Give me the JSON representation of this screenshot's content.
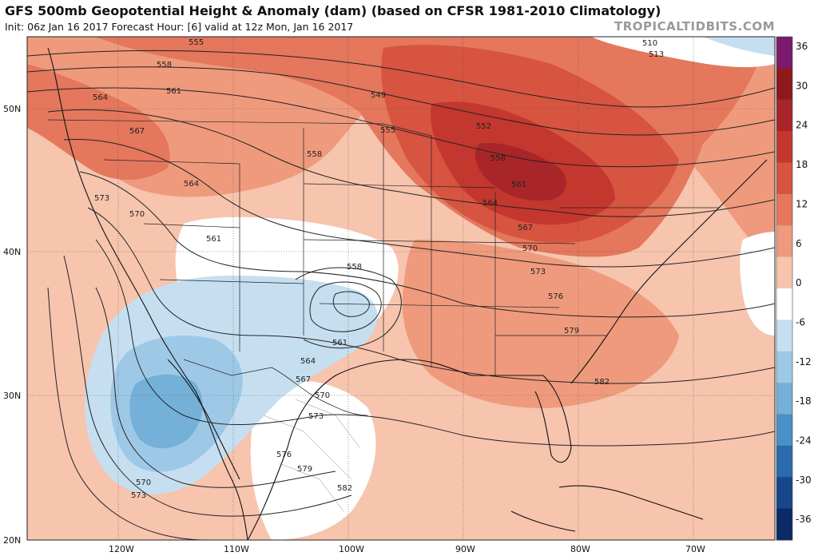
{
  "header": {
    "title": "GFS 500mb Geopotential Height & Anomaly (dam) (based on CFSR 1981-2010 Climatology)",
    "subtitle": "Init: 06z Jan 16 2017   Forecast Hour: [6]   valid at 12z Mon, Jan 16 2017",
    "brand": "TROPICALTIDBITS.COM"
  },
  "axes": {
    "lon_labels": [
      "120W",
      "110W",
      "100W",
      "90W",
      "80W",
      "70W"
    ],
    "lat_labels": [
      "50N",
      "40N",
      "30N",
      "20N"
    ]
  },
  "colorbar": {
    "labels": [
      "36",
      "30",
      "24",
      "18",
      "12",
      "6",
      "0",
      "-6",
      "-12",
      "-18",
      "-24",
      "-30",
      "-36"
    ],
    "colors": [
      "#7b1a6c",
      "#8c1a1a",
      "#a8262a",
      "#c4372e",
      "#d65440",
      "#e4775c",
      "#ef9a7d",
      "#f7c4ae",
      "#ffffff",
      "#c6dff0",
      "#9ec9e6",
      "#74b0d8",
      "#4a90c6",
      "#2a6bab",
      "#17478a",
      "#0b2a66"
    ]
  },
  "contour_labels": [
    {
      "text": "555"
    },
    {
      "text": "558"
    },
    {
      "text": "561"
    },
    {
      "text": "564"
    },
    {
      "text": "567"
    },
    {
      "text": "573"
    },
    {
      "text": "570"
    },
    {
      "text": "564"
    },
    {
      "text": "561"
    },
    {
      "text": "558"
    },
    {
      "text": "555"
    },
    {
      "text": "549"
    },
    {
      "text": "552"
    },
    {
      "text": "558"
    },
    {
      "text": "561"
    },
    {
      "text": "564"
    },
    {
      "text": "567"
    },
    {
      "text": "570"
    },
    {
      "text": "573"
    },
    {
      "text": "576"
    },
    {
      "text": "579"
    },
    {
      "text": "582"
    },
    {
      "text": "510"
    },
    {
      "text": "513"
    },
    {
      "text": "558"
    },
    {
      "text": "561"
    },
    {
      "text": "564"
    },
    {
      "text": "567"
    },
    {
      "text": "570"
    },
    {
      "text": "573"
    },
    {
      "text": "576"
    },
    {
      "text": "579"
    },
    {
      "text": "582"
    },
    {
      "text": "570"
    },
    {
      "text": "573"
    }
  ]
}
